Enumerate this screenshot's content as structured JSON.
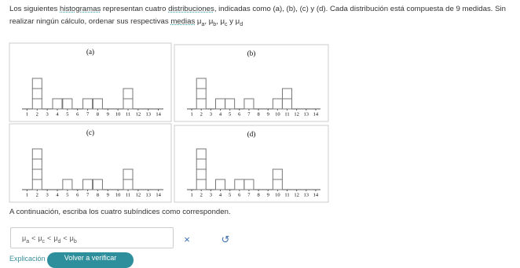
{
  "question": {
    "text_1": "Los siguientes ",
    "link_1": "histogramas",
    "text_2": " representan cuatro ",
    "link_2": "distribuciones",
    "text_3": ", indicadas como (a), (b), (c) y (d). Cada distribución está compuesta de 9 medidas. Sin realizar ningún cálculo, ordenar sus respectivas ",
    "link_3": "medias",
    "symbols": [
      {
        "symbol": "μ",
        "subscript": "a"
      },
      {
        "symbol": "μ",
        "subscript": "b"
      },
      {
        "symbol": "μ",
        "subscript": "c"
      },
      {
        "symbol": "μ",
        "subscript": "d"
      }
    ],
    "separator": ", ",
    "conjunction": " y "
  },
  "panels": [
    {
      "label": "(a)",
      "ticks": [
        1,
        2,
        3,
        4,
        5,
        6,
        7,
        8,
        9,
        10,
        11,
        12,
        13,
        14
      ],
      "counts": [
        0,
        3,
        0,
        1,
        1,
        0,
        1,
        1,
        0,
        0,
        2,
        0,
        0,
        0
      ]
    },
    {
      "label": "(b)",
      "ticks": [
        1,
        2,
        3,
        4,
        5,
        6,
        7,
        8,
        9,
        10,
        11,
        12,
        13,
        14
      ],
      "counts": [
        0,
        3,
        0,
        1,
        1,
        0,
        1,
        0,
        0,
        1,
        2,
        0,
        0,
        0
      ]
    },
    {
      "label": "(c)",
      "ticks": [
        1,
        2,
        3,
        4,
        5,
        6,
        7,
        8,
        9,
        10,
        11,
        12,
        13,
        14
      ],
      "counts": [
        0,
        4,
        0,
        0,
        1,
        0,
        1,
        1,
        0,
        0,
        2,
        0,
        0,
        0
      ]
    },
    {
      "label": "(d)",
      "ticks": [
        1,
        2,
        3,
        4,
        5,
        6,
        7,
        8,
        9,
        10,
        11,
        12,
        13,
        14
      ],
      "counts": [
        0,
        4,
        0,
        1,
        0,
        1,
        1,
        0,
        0,
        2,
        0,
        0,
        0,
        0
      ]
    }
  ],
  "prompt": "A continuación, escriba los cuatro subíndices como corresponden.",
  "answer": {
    "terms": [
      {
        "symbol": "μ",
        "subscript": "a"
      },
      {
        "symbol": "μ",
        "subscript": "c"
      },
      {
        "symbol": "μ",
        "subscript": "d"
      },
      {
        "symbol": "μ",
        "subscript": "b"
      }
    ],
    "relations": [
      "<",
      "<",
      "<"
    ]
  },
  "buttons": {
    "clear": "×",
    "undo": "↺"
  },
  "footer": {
    "link": "Explicación",
    "button": "Volver a verificar"
  }
}
